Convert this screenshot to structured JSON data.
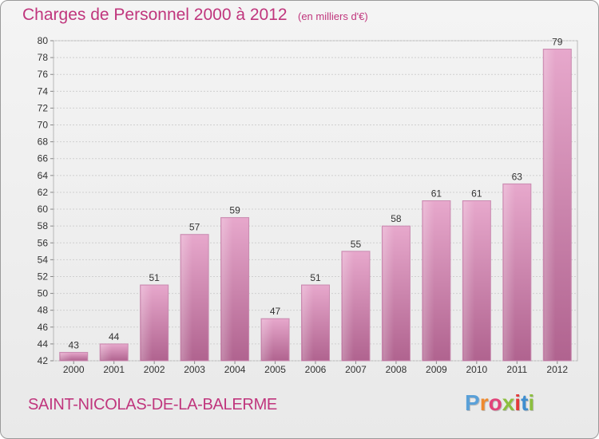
{
  "header": {
    "title": "Charges de Personnel 2000 à 2012",
    "subtitle": "(en milliers d'€)"
  },
  "footer": {
    "commune": "SAINT-NICOLAS-DE-LA-BALERME",
    "logo_letters": [
      "P",
      "r",
      "o",
      "x",
      "i",
      "t",
      "i"
    ],
    "logo_colors": [
      "#5aa0d8",
      "#ef8a2e",
      "#e2447a",
      "#8cbf3f",
      "#e23a3a",
      "#3e8ed0",
      "#8cbf3f"
    ]
  },
  "colors": {
    "accent": "#c0367d",
    "bar_light": "#e7a8cc",
    "bar_dark": "#b0638f"
  },
  "chart_data": {
    "type": "bar",
    "title": "Charges de Personnel 2000 à 2012",
    "subtitle": "(en milliers d'€)",
    "xlabel": "",
    "ylabel": "",
    "categories": [
      "2000",
      "2001",
      "2002",
      "2003",
      "2004",
      "2005",
      "2006",
      "2007",
      "2008",
      "2009",
      "2010",
      "2011",
      "2012"
    ],
    "values": [
      43,
      44,
      51,
      57,
      59,
      47,
      51,
      55,
      58,
      61,
      61,
      63,
      79
    ],
    "ylim": [
      42,
      80
    ],
    "yticks": [
      42,
      44,
      46,
      48,
      50,
      52,
      54,
      56,
      58,
      60,
      62,
      64,
      66,
      68,
      70,
      72,
      74,
      76,
      78,
      80
    ],
    "grid": true,
    "data_labels": true
  }
}
